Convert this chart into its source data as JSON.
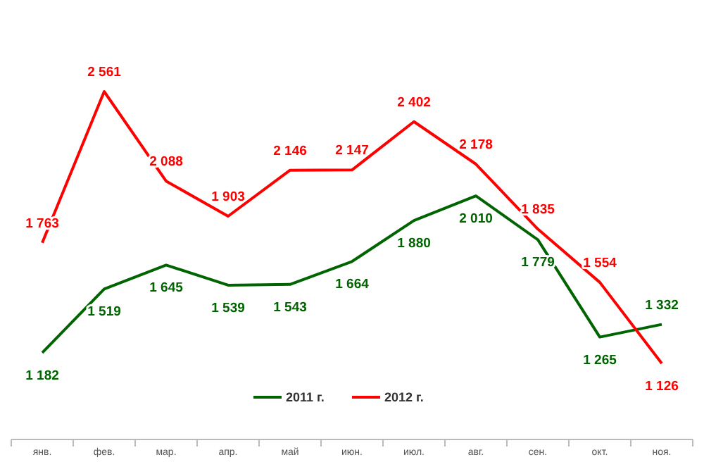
{
  "chart_data": {
    "type": "line",
    "categories": [
      "янв.",
      "фев.",
      "мар.",
      "апр.",
      "май",
      "июн.",
      "июл.",
      "авг.",
      "сен.",
      "окт.",
      "ноя."
    ],
    "series": [
      {
        "name": "2011 г.",
        "color": "#006400",
        "values": [
          1182,
          1519,
          1645,
          1539,
          1543,
          1664,
          1880,
          2010,
          1779,
          1265,
          1332
        ],
        "value_labels": [
          "1 182",
          "1 519",
          "1 645",
          "1 539",
          "1 543",
          "1 664",
          "1 880",
          "2 010",
          "1 779",
          "1 265",
          "1 332"
        ]
      },
      {
        "name": "2012 г.",
        "color": "#ff0000",
        "values": [
          1763,
          2561,
          2088,
          1903,
          2146,
          2147,
          2402,
          2178,
          1835,
          1554,
          1126
        ],
        "value_labels": [
          "1 763",
          "2 561",
          "2 088",
          "1 903",
          "2 146",
          "2 147",
          "2 402",
          "2 178",
          "1 835",
          "1 554",
          "1 126"
        ]
      }
    ],
    "tick_labels": "x",
    "legend": "bottom",
    "marker": "none",
    "line_style": "solid"
  }
}
